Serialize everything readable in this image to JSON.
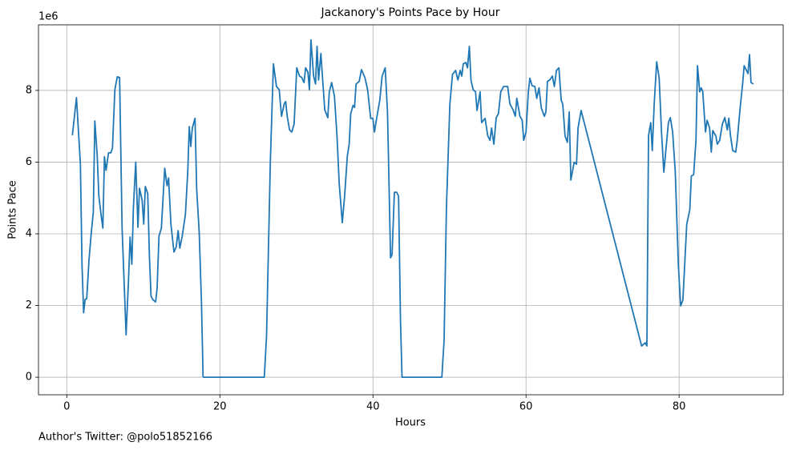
{
  "chart_data": {
    "type": "line",
    "title": "Jackanory's Points Pace by Hour",
    "xlabel": "Hours",
    "ylabel": "Points Pace",
    "y_offset_label": "1e6",
    "footnote": "Author's Twitter: @polo51852166",
    "color": "#1f77b4",
    "grid": true,
    "xlim": [
      -3.7,
      93.6
    ],
    "ylim": [
      -0.49,
      9.83
    ],
    "xticks": [
      0,
      20,
      40,
      60,
      80
    ],
    "yticks": [
      0,
      2,
      4,
      6,
      8
    ],
    "x": [
      0.73,
      1.26,
      1.78,
      1.99,
      2.2,
      2.4,
      2.6,
      2.9,
      3.2,
      3.46,
      3.66,
      3.98,
      4.19,
      4.5,
      4.71,
      4.92,
      5.13,
      5.45,
      5.76,
      5.97,
      6.28,
      6.6,
      6.9,
      7.22,
      7.75,
      8.06,
      8.27,
      8.5,
      8.7,
      9.0,
      9.3,
      9.5,
      9.84,
      10.05,
      10.26,
      10.58,
      10.8,
      11.0,
      11.3,
      11.6,
      11.8,
      12.04,
      12.36,
      12.8,
      13.1,
      13.3,
      13.6,
      14.0,
      14.3,
      14.55,
      14.76,
      15.08,
      15.5,
      15.8,
      16.0,
      16.2,
      16.4,
      16.75,
      16.96,
      17.3,
      17.6,
      17.8,
      17.9,
      25.8,
      26.1,
      26.6,
      27.0,
      27.4,
      27.75,
      28.06,
      28.4,
      28.6,
      28.8,
      29.1,
      29.4,
      29.7,
      30.05,
      30.4,
      30.7,
      31.0,
      31.2,
      31.5,
      31.7,
      31.9,
      32.25,
      32.5,
      32.7,
      32.9,
      33.2,
      33.4,
      33.7,
      34.1,
      34.3,
      34.6,
      34.97,
      35.3,
      35.6,
      36.0,
      36.3,
      36.65,
      36.9,
      37.1,
      37.4,
      37.6,
      37.8,
      38.2,
      38.5,
      38.95,
      39.3,
      39.7,
      40.0,
      40.2,
      40.5,
      40.9,
      41.2,
      41.6,
      41.9,
      42.1,
      42.3,
      42.5,
      42.8,
      43.1,
      43.35,
      43.6,
      43.8,
      49.0,
      49.3,
      49.6,
      50.05,
      50.4,
      50.8,
      51.1,
      51.4,
      51.6,
      51.8,
      52.15,
      52.36,
      52.6,
      52.8,
      53.1,
      53.4,
      53.6,
      54.0,
      54.2,
      54.65,
      55.0,
      55.3,
      55.5,
      55.8,
      56.1,
      56.4,
      56.7,
      57.07,
      57.6,
      57.9,
      58.3,
      58.6,
      58.8,
      59.2,
      59.5,
      59.7,
      60.0,
      60.3,
      60.5,
      60.8,
      61.15,
      61.4,
      61.7,
      62.0,
      62.4,
      62.6,
      62.8,
      63.1,
      63.45,
      63.7,
      63.98,
      64.3,
      64.6,
      64.8,
      65.1,
      65.4,
      65.65,
      65.86,
      66.3,
      66.6,
      66.8,
      67.2,
      75.1,
      75.6,
      75.8,
      76.0,
      76.3,
      76.5,
      76.75,
      77.07,
      77.4,
      77.7,
      78.0,
      78.3,
      78.6,
      78.85,
      79.16,
      79.5,
      79.9,
      80.2,
      80.5,
      81.0,
      81.4,
      81.6,
      81.9,
      82.2,
      82.4,
      82.7,
      82.9,
      83.1,
      83.45,
      83.66,
      83.98,
      84.2,
      84.4,
      84.8,
      85.0,
      85.3,
      85.65,
      85.97,
      86.3,
      86.5,
      86.7,
      87.0,
      87.4,
      87.6,
      87.98,
      88.3,
      88.5,
      88.8,
      89.0,
      89.2,
      89.4,
      89.7
    ],
    "values": [
      6.75,
      7.8,
      5.94,
      3.15,
      1.8,
      2.17,
      2.19,
      3.26,
      4.04,
      4.6,
      7.15,
      6.17,
      5.05,
      4.49,
      4.16,
      6.15,
      5.77,
      6.26,
      6.26,
      6.39,
      8.02,
      8.38,
      8.36,
      4.16,
      1.18,
      2.7,
      3.91,
      3.15,
      4.72,
      6.0,
      4.18,
      5.27,
      4.94,
      4.27,
      5.32,
      5.12,
      3.37,
      2.26,
      2.15,
      2.1,
      2.48,
      3.93,
      4.16,
      5.83,
      5.34,
      5.56,
      4.27,
      3.49,
      3.64,
      4.09,
      3.6,
      3.93,
      4.54,
      5.72,
      6.99,
      6.44,
      6.95,
      7.22,
      5.27,
      4.04,
      2.03,
      0.02,
      0,
      0,
      1.14,
      6.06,
      8.74,
      8.11,
      8.02,
      7.28,
      7.62,
      7.69,
      7.28,
      6.9,
      6.84,
      7.06,
      8.63,
      8.4,
      8.36,
      8.22,
      8.63,
      8.51,
      8.02,
      9.41,
      8.4,
      8.18,
      9.23,
      8.29,
      9.03,
      8.4,
      7.46,
      7.24,
      7.96,
      8.22,
      7.84,
      6.73,
      5.39,
      4.31,
      5.05,
      6.17,
      6.5,
      7.35,
      7.58,
      7.53,
      8.18,
      8.25,
      8.58,
      8.36,
      8.02,
      7.22,
      7.22,
      6.84,
      7.24,
      7.73,
      8.4,
      8.63,
      7.4,
      5.39,
      3.33,
      3.42,
      5.16,
      5.16,
      5.05,
      1.59,
      0,
      0,
      1.03,
      4.72,
      7.62,
      8.45,
      8.56,
      8.29,
      8.56,
      8.4,
      8.74,
      8.78,
      8.63,
      9.23,
      8.29,
      8.02,
      7.96,
      7.44,
      7.96,
      7.1,
      7.22,
      6.73,
      6.61,
      6.95,
      6.5,
      7.24,
      7.35,
      7.96,
      8.11,
      8.11,
      7.62,
      7.46,
      7.28,
      7.78,
      7.28,
      7.17,
      6.61,
      6.84,
      7.96,
      8.34,
      8.13,
      8.11,
      7.78,
      8.07,
      7.51,
      7.28,
      7.4,
      8.25,
      8.29,
      8.4,
      8.11,
      8.56,
      8.63,
      7.73,
      7.62,
      6.73,
      6.55,
      7.4,
      5.5,
      6.0,
      5.94,
      6.95,
      7.44,
      0.87,
      0.96,
      0.87,
      6.73,
      7.1,
      6.32,
      7.62,
      8.8,
      8.34,
      6.84,
      5.72,
      6.39,
      7.1,
      7.24,
      6.84,
      5.72,
      3.15,
      1.99,
      2.15,
      4.27,
      4.67,
      5.61,
      5.65,
      6.61,
      8.69,
      7.96,
      8.07,
      7.96,
      6.84,
      7.17,
      6.95,
      6.28,
      6.88,
      6.73,
      6.5,
      6.61,
      7.06,
      7.24,
      6.9,
      7.22,
      6.77,
      6.32,
      6.28,
      6.61,
      7.51,
      8.18,
      8.69,
      8.56,
      8.47,
      9.0,
      8.22,
      8.18
    ]
  }
}
